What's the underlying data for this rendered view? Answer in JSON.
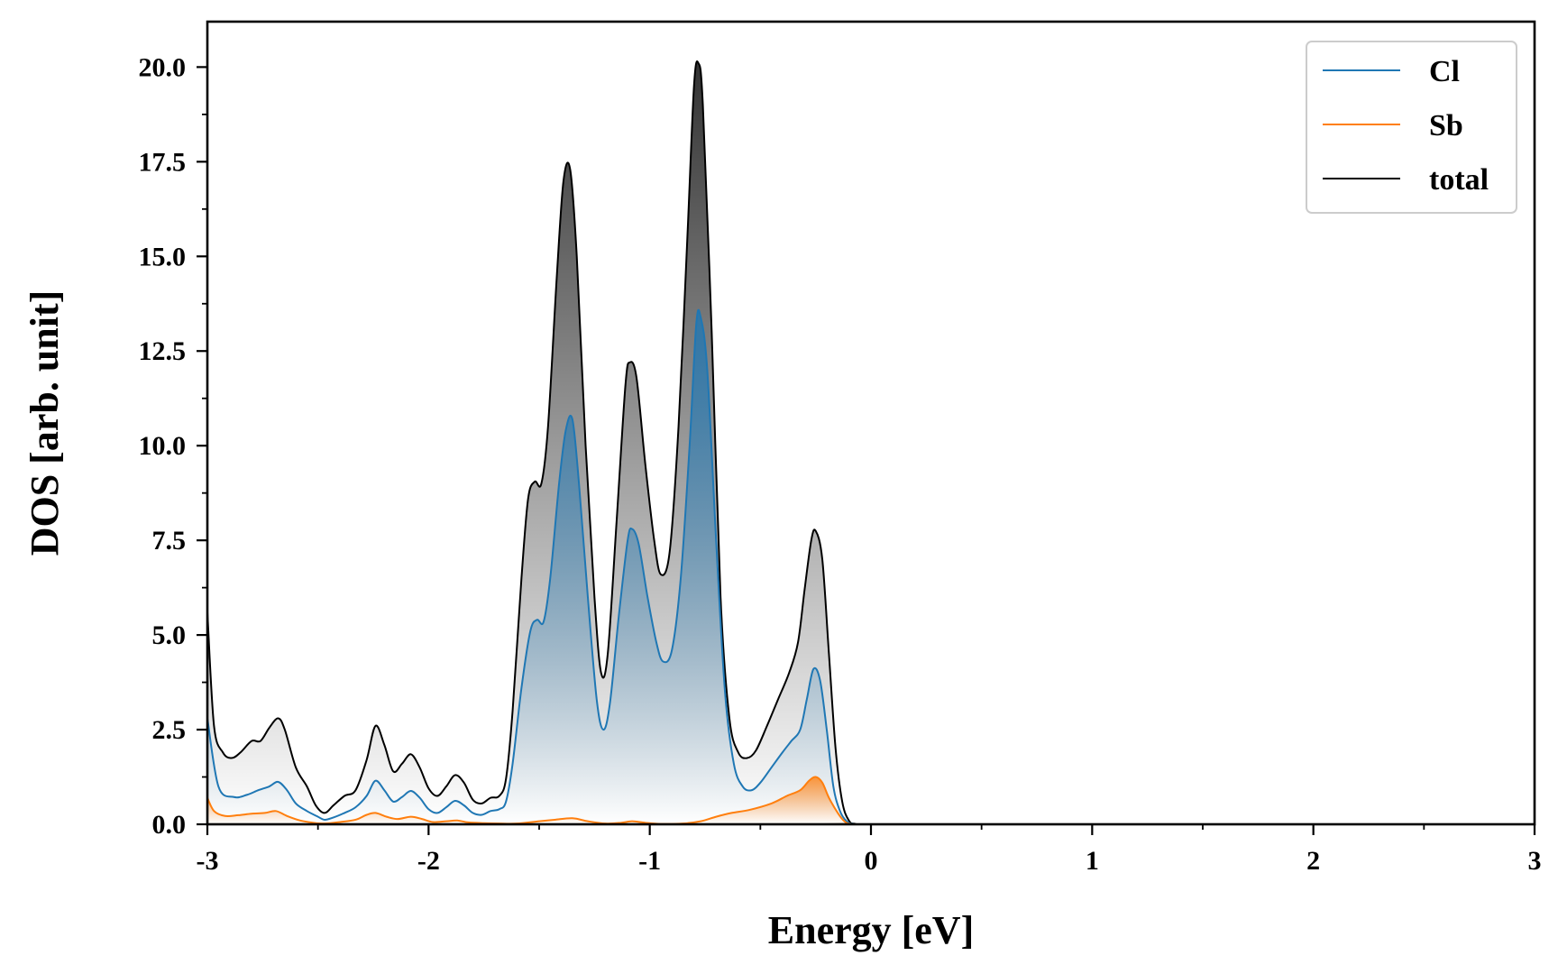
{
  "chart_data": {
    "type": "line",
    "title": "",
    "xlabel": "Energy [eV]",
    "ylabel": "DOS [arb. unit]",
    "xlim": [
      -3,
      3
    ],
    "ylim": [
      0,
      21.2
    ],
    "xticks": [
      -3,
      -2,
      -1,
      0,
      1,
      2,
      3
    ],
    "xtick_labels": [
      "-3",
      "-2",
      "-1",
      "0",
      "1",
      "2",
      "3"
    ],
    "yticks": [
      0,
      2.5,
      5,
      7.5,
      10,
      12.5,
      15,
      17.5,
      20
    ],
    "ytick_labels": [
      "0.0",
      "2.5",
      "5.0",
      "7.5",
      "10.0",
      "12.5",
      "15.0",
      "17.5",
      "20.0"
    ],
    "grid": false,
    "legend_position": "top-right",
    "series": [
      {
        "name": "Cl",
        "color": "#1f77b4",
        "fill": "gradient",
        "points": [
          [
            -3.0,
            2.8
          ],
          [
            -2.95,
            1.0
          ],
          [
            -2.88,
            0.72
          ],
          [
            -2.82,
            0.78
          ],
          [
            -2.77,
            0.9
          ],
          [
            -2.72,
            1.0
          ],
          [
            -2.68,
            1.12
          ],
          [
            -2.64,
            0.9
          ],
          [
            -2.6,
            0.55
          ],
          [
            -2.55,
            0.35
          ],
          [
            -2.5,
            0.2
          ],
          [
            -2.47,
            0.12
          ],
          [
            -2.43,
            0.18
          ],
          [
            -2.38,
            0.3
          ],
          [
            -2.33,
            0.45
          ],
          [
            -2.28,
            0.75
          ],
          [
            -2.24,
            1.15
          ],
          [
            -2.2,
            0.9
          ],
          [
            -2.16,
            0.6
          ],
          [
            -2.12,
            0.72
          ],
          [
            -2.08,
            0.88
          ],
          [
            -2.04,
            0.7
          ],
          [
            -2.0,
            0.4
          ],
          [
            -1.96,
            0.3
          ],
          [
            -1.92,
            0.45
          ],
          [
            -1.88,
            0.62
          ],
          [
            -1.84,
            0.5
          ],
          [
            -1.8,
            0.3
          ],
          [
            -1.76,
            0.25
          ],
          [
            -1.72,
            0.35
          ],
          [
            -1.68,
            0.4
          ],
          [
            -1.65,
            0.6
          ],
          [
            -1.62,
            1.6
          ],
          [
            -1.58,
            3.6
          ],
          [
            -1.54,
            5.1
          ],
          [
            -1.51,
            5.4
          ],
          [
            -1.48,
            5.35
          ],
          [
            -1.45,
            6.5
          ],
          [
            -1.41,
            9.0
          ],
          [
            -1.38,
            10.4
          ],
          [
            -1.35,
            10.7
          ],
          [
            -1.32,
            9.0
          ],
          [
            -1.28,
            6.0
          ],
          [
            -1.24,
            3.3
          ],
          [
            -1.21,
            2.5
          ],
          [
            -1.18,
            3.2
          ],
          [
            -1.14,
            5.5
          ],
          [
            -1.1,
            7.5
          ],
          [
            -1.08,
            7.8
          ],
          [
            -1.05,
            7.4
          ],
          [
            -1.01,
            6.0
          ],
          [
            -0.97,
            4.8
          ],
          [
            -0.94,
            4.3
          ],
          [
            -0.9,
            4.6
          ],
          [
            -0.86,
            6.5
          ],
          [
            -0.82,
            10.0
          ],
          [
            -0.79,
            13.2
          ],
          [
            -0.77,
            13.4
          ],
          [
            -0.74,
            12.0
          ],
          [
            -0.7,
            7.5
          ],
          [
            -0.66,
            3.5
          ],
          [
            -0.62,
            1.6
          ],
          [
            -0.58,
            1.0
          ],
          [
            -0.54,
            0.9
          ],
          [
            -0.5,
            1.1
          ],
          [
            -0.45,
            1.5
          ],
          [
            -0.4,
            1.9
          ],
          [
            -0.36,
            2.2
          ],
          [
            -0.32,
            2.5
          ],
          [
            -0.29,
            3.3
          ],
          [
            -0.26,
            4.1
          ],
          [
            -0.23,
            3.8
          ],
          [
            -0.2,
            2.5
          ],
          [
            -0.17,
            1.0
          ],
          [
            -0.14,
            0.35
          ],
          [
            -0.11,
            0.08
          ],
          [
            -0.08,
            0.01
          ],
          [
            0.0,
            0.0
          ],
          [
            3.0,
            0.0
          ]
        ]
      },
      {
        "name": "Sb",
        "color": "#ff7f0e",
        "fill": "gradient",
        "points": [
          [
            -3.0,
            0.7
          ],
          [
            -2.97,
            0.35
          ],
          [
            -2.92,
            0.22
          ],
          [
            -2.86,
            0.24
          ],
          [
            -2.8,
            0.28
          ],
          [
            -2.74,
            0.3
          ],
          [
            -2.69,
            0.35
          ],
          [
            -2.64,
            0.22
          ],
          [
            -2.58,
            0.1
          ],
          [
            -2.52,
            0.04
          ],
          [
            -2.47,
            0.02
          ],
          [
            -2.4,
            0.06
          ],
          [
            -2.33,
            0.12
          ],
          [
            -2.28,
            0.25
          ],
          [
            -2.24,
            0.3
          ],
          [
            -2.19,
            0.2
          ],
          [
            -2.14,
            0.14
          ],
          [
            -2.08,
            0.2
          ],
          [
            -2.03,
            0.14
          ],
          [
            -1.98,
            0.06
          ],
          [
            -1.92,
            0.08
          ],
          [
            -1.87,
            0.1
          ],
          [
            -1.82,
            0.05
          ],
          [
            -1.75,
            0.03
          ],
          [
            -1.68,
            0.02
          ],
          [
            -1.6,
            0.02
          ],
          [
            -1.5,
            0.08
          ],
          [
            -1.43,
            0.12
          ],
          [
            -1.35,
            0.16
          ],
          [
            -1.28,
            0.08
          ],
          [
            -1.2,
            0.02
          ],
          [
            -1.13,
            0.04
          ],
          [
            -1.08,
            0.08
          ],
          [
            -1.02,
            0.04
          ],
          [
            -0.95,
            0.01
          ],
          [
            -0.85,
            0.02
          ],
          [
            -0.77,
            0.08
          ],
          [
            -0.7,
            0.2
          ],
          [
            -0.63,
            0.3
          ],
          [
            -0.55,
            0.38
          ],
          [
            -0.45,
            0.55
          ],
          [
            -0.38,
            0.75
          ],
          [
            -0.32,
            0.9
          ],
          [
            -0.28,
            1.15
          ],
          [
            -0.25,
            1.25
          ],
          [
            -0.22,
            1.1
          ],
          [
            -0.19,
            0.7
          ],
          [
            -0.15,
            0.3
          ],
          [
            -0.12,
            0.08
          ],
          [
            -0.09,
            0.01
          ],
          [
            0.0,
            0.0
          ],
          [
            3.0,
            0.0
          ]
        ]
      },
      {
        "name": "total",
        "color": "#000000",
        "fill": "gradient",
        "points": [
          [
            -3.0,
            5.6
          ],
          [
            -2.97,
            2.6
          ],
          [
            -2.93,
            1.9
          ],
          [
            -2.89,
            1.75
          ],
          [
            -2.85,
            1.9
          ],
          [
            -2.8,
            2.2
          ],
          [
            -2.76,
            2.2
          ],
          [
            -2.72,
            2.55
          ],
          [
            -2.68,
            2.8
          ],
          [
            -2.65,
            2.5
          ],
          [
            -2.6,
            1.5
          ],
          [
            -2.55,
            1.0
          ],
          [
            -2.51,
            0.5
          ],
          [
            -2.47,
            0.3
          ],
          [
            -2.43,
            0.5
          ],
          [
            -2.38,
            0.75
          ],
          [
            -2.33,
            0.9
          ],
          [
            -2.28,
            1.7
          ],
          [
            -2.24,
            2.6
          ],
          [
            -2.2,
            2.1
          ],
          [
            -2.16,
            1.4
          ],
          [
            -2.12,
            1.6
          ],
          [
            -2.08,
            1.85
          ],
          [
            -2.04,
            1.5
          ],
          [
            -2.0,
            0.95
          ],
          [
            -1.96,
            0.75
          ],
          [
            -1.92,
            1.0
          ],
          [
            -1.88,
            1.3
          ],
          [
            -1.84,
            1.1
          ],
          [
            -1.8,
            0.65
          ],
          [
            -1.76,
            0.55
          ],
          [
            -1.72,
            0.7
          ],
          [
            -1.68,
            0.75
          ],
          [
            -1.65,
            1.2
          ],
          [
            -1.62,
            3.0
          ],
          [
            -1.58,
            6.5
          ],
          [
            -1.55,
            8.6
          ],
          [
            -1.52,
            9.05
          ],
          [
            -1.49,
            9.0
          ],
          [
            -1.46,
            10.5
          ],
          [
            -1.42,
            14.5
          ],
          [
            -1.39,
            17.0
          ],
          [
            -1.36,
            17.3
          ],
          [
            -1.33,
            15.0
          ],
          [
            -1.29,
            10.0
          ],
          [
            -1.25,
            6.0
          ],
          [
            -1.22,
            4.0
          ],
          [
            -1.19,
            4.5
          ],
          [
            -1.15,
            8.0
          ],
          [
            -1.11,
            11.6
          ],
          [
            -1.09,
            12.2
          ],
          [
            -1.06,
            11.8
          ],
          [
            -1.02,
            9.5
          ],
          [
            -0.98,
            7.5
          ],
          [
            -0.95,
            6.6
          ],
          [
            -0.91,
            7.2
          ],
          [
            -0.87,
            10.5
          ],
          [
            -0.83,
            15.5
          ],
          [
            -0.8,
            19.5
          ],
          [
            -0.78,
            20.1
          ],
          [
            -0.76,
            19.0
          ],
          [
            -0.72,
            13.0
          ],
          [
            -0.68,
            6.0
          ],
          [
            -0.64,
            2.8
          ],
          [
            -0.6,
            1.9
          ],
          [
            -0.56,
            1.75
          ],
          [
            -0.52,
            1.95
          ],
          [
            -0.47,
            2.6
          ],
          [
            -0.42,
            3.3
          ],
          [
            -0.37,
            4.0
          ],
          [
            -0.33,
            4.8
          ],
          [
            -0.3,
            6.2
          ],
          [
            -0.27,
            7.5
          ],
          [
            -0.25,
            7.75
          ],
          [
            -0.22,
            7.0
          ],
          [
            -0.19,
            4.5
          ],
          [
            -0.16,
            2.0
          ],
          [
            -0.13,
            0.6
          ],
          [
            -0.1,
            0.1
          ],
          [
            -0.07,
            0.01
          ],
          [
            0.0,
            0.0
          ],
          [
            3.0,
            0.0
          ]
        ]
      }
    ]
  }
}
